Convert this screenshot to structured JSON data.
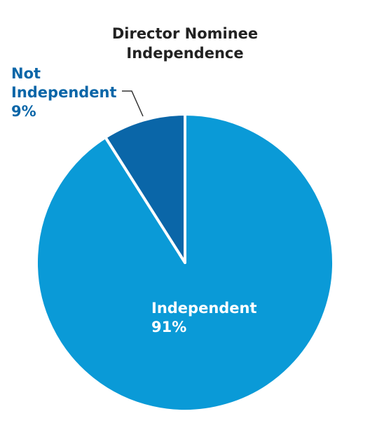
{
  "chart_data": {
    "type": "pie",
    "title": "Director Nominee Independence",
    "categories": [
      "Independent",
      "Not Independent"
    ],
    "values": [
      91,
      9
    ],
    "value_labels": [
      "91%",
      "9%"
    ],
    "colors": [
      "#0a9ad7",
      "#0a66a8"
    ]
  }
}
